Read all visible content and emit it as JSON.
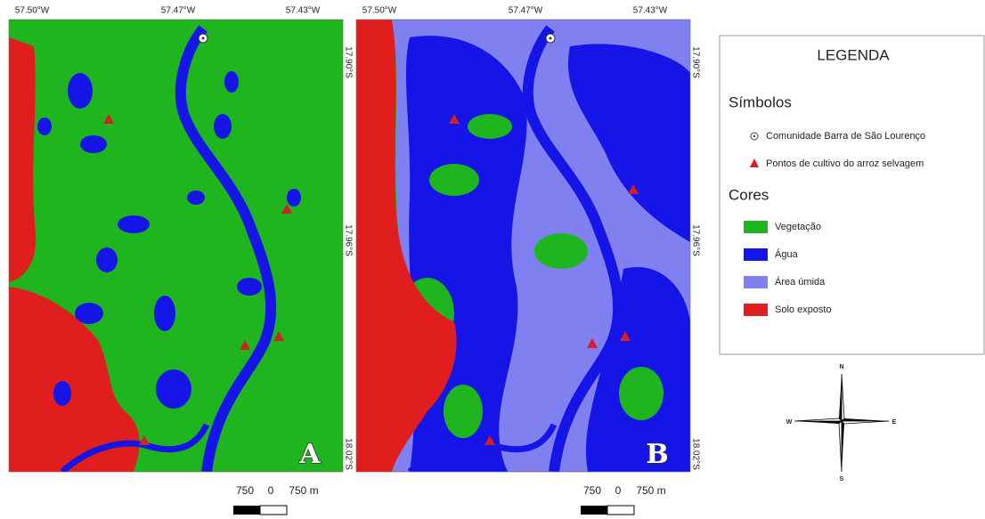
{
  "panels": [
    {
      "label": "A",
      "top_labels": [
        "57.50°W",
        "57.47°W",
        "57.43°W"
      ],
      "side_labels": [
        "17.90°S",
        "17.96°S",
        "18.02°S"
      ],
      "scale_labels": [
        "750",
        "0",
        "750 m"
      ]
    },
    {
      "label": "B",
      "top_labels": [
        "57.50°W",
        "57.47°W",
        "57.43°W"
      ],
      "side_labels": [
        "17.90°S",
        "17.96°S",
        "18.02°S"
      ],
      "scale_labels": [
        "750",
        "0",
        "750 m"
      ]
    }
  ],
  "legend": {
    "title": "LEGENDA",
    "symbols_heading": "Símbolos",
    "symbols": [
      "Comunidade Barra de São Lourenço",
      "Pontos de cultivo do arroz selvagem"
    ],
    "colors_heading": "Cores",
    "colors": [
      {
        "label": "Vegetação",
        "color": "#1fb51f"
      },
      {
        "label": "Água",
        "color": "#1515e8"
      },
      {
        "label": "Área úmida",
        "color": "#8080f0"
      },
      {
        "label": "Solo exposto",
        "color": "#e01e1e"
      }
    ]
  },
  "compass": {
    "n": "N",
    "s": "S",
    "e": "E",
    "w": "W"
  }
}
